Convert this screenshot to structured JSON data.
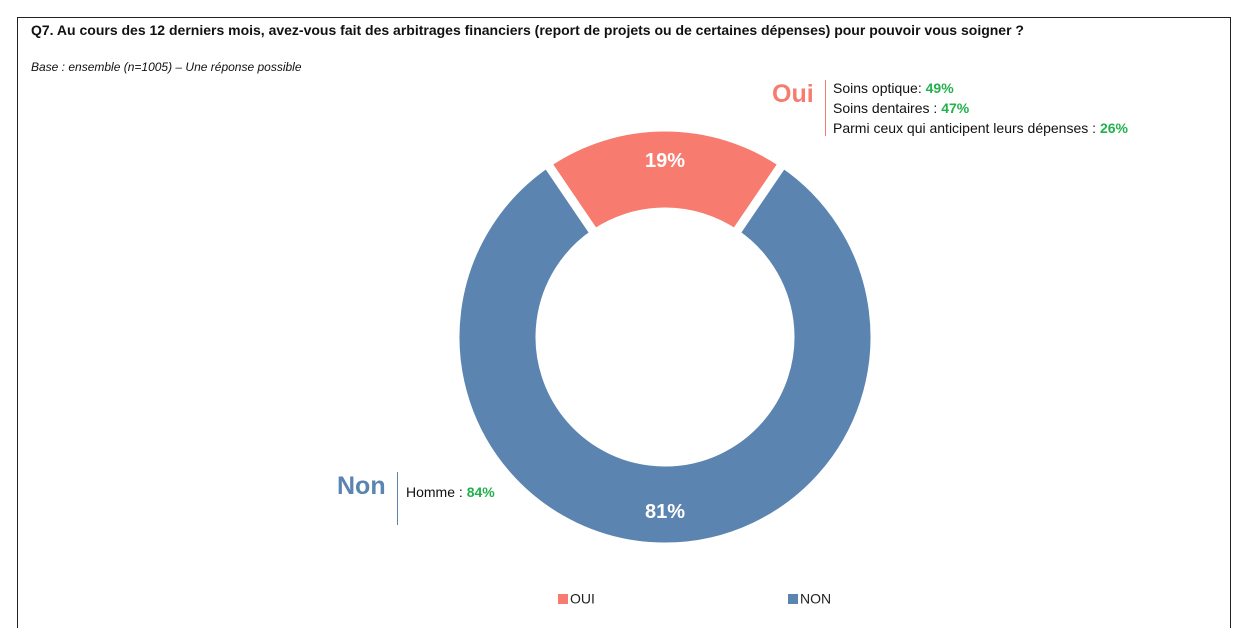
{
  "chart_data": {
    "type": "pie",
    "title": "Q7. Au cours des 12 derniers mois, avez-vous fait des arbitrages financiers (report de projets ou de certaines dépenses) pour pouvoir vous soigner ?",
    "subtitle": "Base : ensemble (n=1005) – Une réponse possible",
    "categories": [
      "OUI",
      "NON"
    ],
    "values": [
      19,
      81
    ],
    "value_labels": [
      "19%",
      "81%"
    ],
    "colors": [
      "#f77b6f",
      "#5b84b0"
    ],
    "donut": true,
    "legend": "bottom",
    "annotations": [
      {
        "title": "Oui",
        "items": [
          {
            "text": "Soins optique:",
            "value": "49%"
          },
          {
            "text": "Soins dentaires :",
            "value": "47%"
          },
          {
            "text": "Parmi ceux qui anticipent leurs dépenses :",
            "value": "26%"
          }
        ]
      },
      {
        "title": "Non",
        "items": [
          {
            "text": "Homme :",
            "value": "84%"
          }
        ]
      }
    ]
  }
}
